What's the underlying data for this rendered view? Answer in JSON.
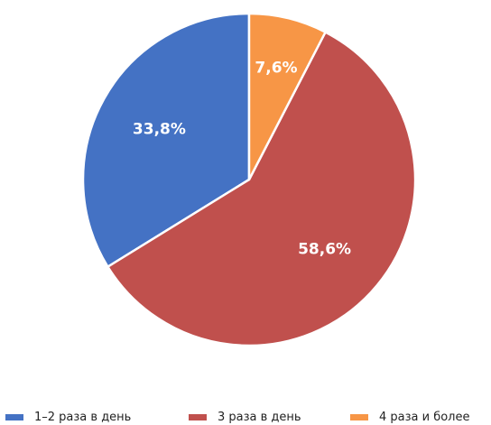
{
  "chart_data": {
    "type": "pie",
    "title": "",
    "categories": [
      "1–2 раза в день",
      "3 раза в день",
      "4 раза и более"
    ],
    "values": [
      33.8,
      58.6,
      7.6
    ],
    "labels": [
      "33,8%",
      "58,6%",
      "7,6%"
    ],
    "colors": [
      "#4472c4",
      "#c0504d",
      "#f79646"
    ],
    "start_angle": "12 o'clock",
    "direction": "counter-clockwise",
    "legend_position": "bottom"
  }
}
